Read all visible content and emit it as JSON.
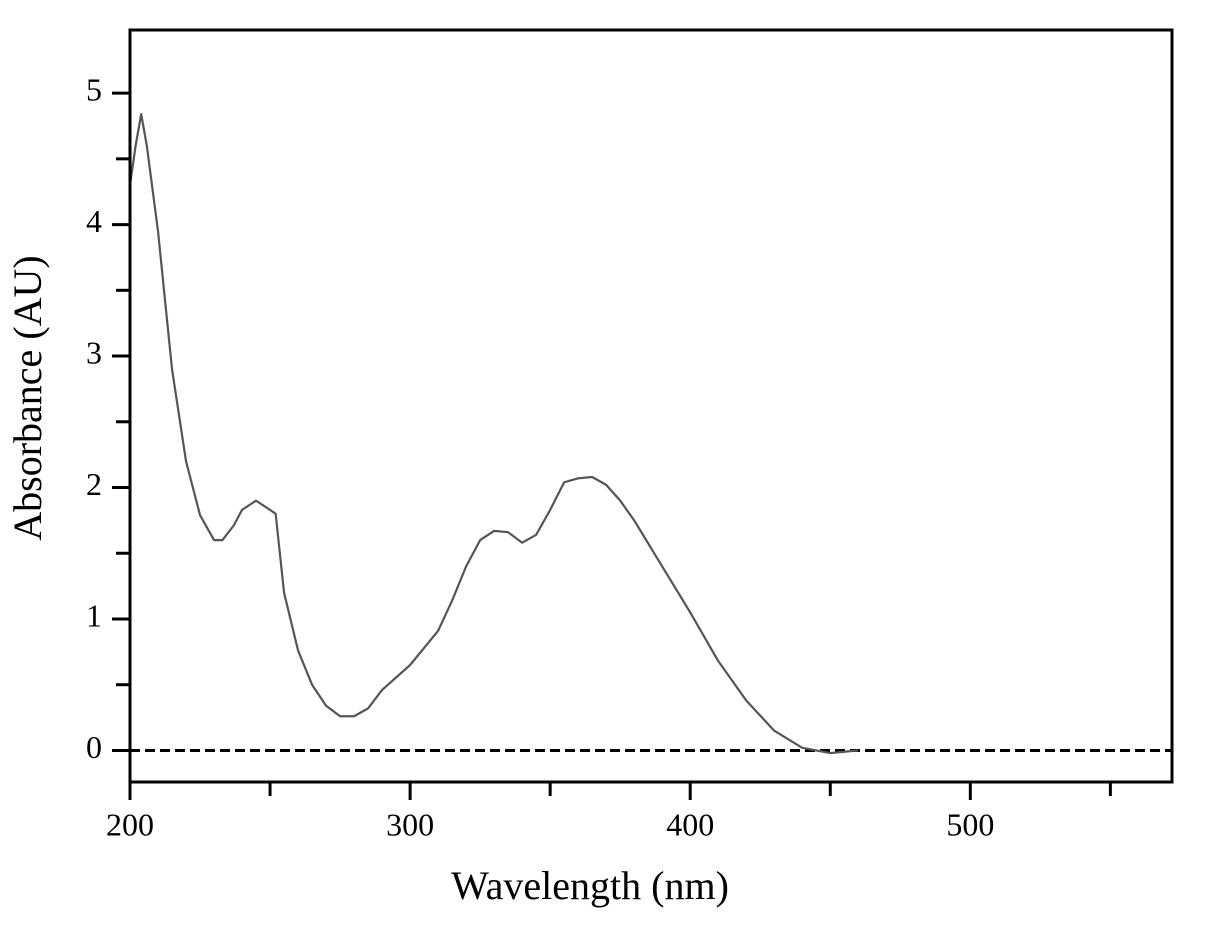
{
  "chart_data": {
    "type": "line",
    "xlabel": "Wavelength (nm)",
    "ylabel": "Absorbance (AU)",
    "x": [
      200,
      202,
      204,
      206,
      210,
      215,
      220,
      225,
      230,
      233,
      237,
      240,
      245,
      250,
      252,
      255,
      260,
      265,
      270,
      275,
      280,
      285,
      290,
      300,
      310,
      315,
      320,
      325,
      330,
      335,
      340,
      345,
      350,
      355,
      360,
      365,
      370,
      375,
      380,
      390,
      400,
      410,
      420,
      430,
      440,
      450,
      455,
      460
    ],
    "series": [
      {
        "color": "#555555",
        "values": [
          4.3,
          4.6,
          4.84,
          4.6,
          3.95,
          2.9,
          2.2,
          1.79,
          1.6,
          1.6,
          1.71,
          1.83,
          1.9,
          1.83,
          1.8,
          1.2,
          0.76,
          0.5,
          0.34,
          0.26,
          0.26,
          0.32,
          0.46,
          0.65,
          0.91,
          1.14,
          1.4,
          1.6,
          1.67,
          1.66,
          1.58,
          1.64,
          1.83,
          2.04,
          2.07,
          2.08,
          2.02,
          1.9,
          1.75,
          1.4,
          1.05,
          0.68,
          0.38,
          0.15,
          0.02,
          -0.02,
          -0.01,
          0
        ]
      }
    ],
    "baseline": 0,
    "xlim": [
      200,
      572
    ],
    "xticks": [
      200,
      300,
      400,
      500
    ],
    "xminor_ticks": [
      250,
      350,
      450,
      550
    ],
    "ylim": [
      -0.24,
      5.48
    ],
    "yticks": [
      0,
      1,
      2,
      3,
      4,
      5
    ],
    "yminor_ticks": [
      0.5,
      1.5,
      2.5,
      3.5,
      4.5
    ]
  }
}
